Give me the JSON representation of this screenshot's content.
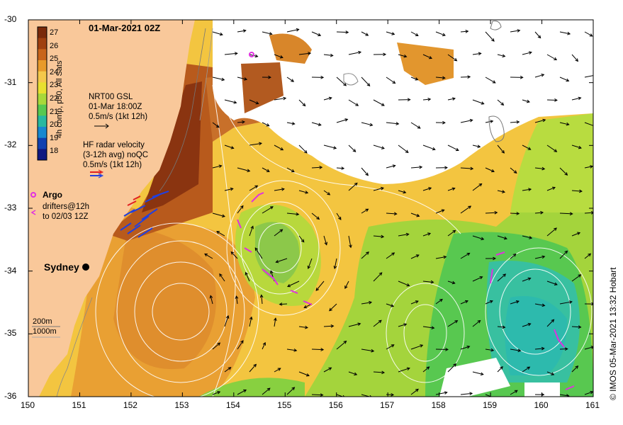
{
  "map": {
    "title": "01-Mar-2021 02Z",
    "credit": "© IMOS 05-Mar-2021 13:32 Hobart",
    "lon_ticks": [
      "150",
      "151",
      "152",
      "153",
      "154",
      "155",
      "156",
      "157",
      "158",
      "159",
      "160",
      "161"
    ],
    "lat_ticks": [
      "-30",
      "-31",
      "-32",
      "-33",
      "-34",
      "-35",
      "-36"
    ],
    "lon_range": [
      150,
      161
    ],
    "lat_range": [
      -36,
      -30
    ]
  },
  "colorbar": {
    "title": "4h comp, p50, All Sats",
    "labels": [
      "27",
      "26",
      "25",
      "24",
      "23",
      "22",
      "21",
      "20",
      "19",
      "18"
    ],
    "colors": [
      "#7a2a0a",
      "#a0400f",
      "#c8641a",
      "#e89a2a",
      "#f5c84a",
      "#e8e030",
      "#a8d83a",
      "#58c850",
      "#28b8a0",
      "#1888d0",
      "#1040b0",
      "#101880"
    ]
  },
  "legend": {
    "gsl_title": "NRT00 GSL",
    "gsl_time": "01-Mar 18:00Z",
    "gsl_scale": "0.5m/s (1kt 12h)",
    "hf_title": "HF radar velocity",
    "hf_avg": "(3-12h avg) noQC",
    "hf_scale": "0.5m/s (1kt 12h)",
    "argo": "Argo",
    "drifters_1": "drifters@12h",
    "drifters_2": "to 02/03 12Z",
    "depth_1": "200m",
    "depth_2": "1000m"
  },
  "places": {
    "sydney": "Sydney"
  },
  "colors": {
    "land": "#f9c89a",
    "argo": "#e030e0",
    "hf_red": "#e02020",
    "hf_blue": "#2040e0"
  }
}
